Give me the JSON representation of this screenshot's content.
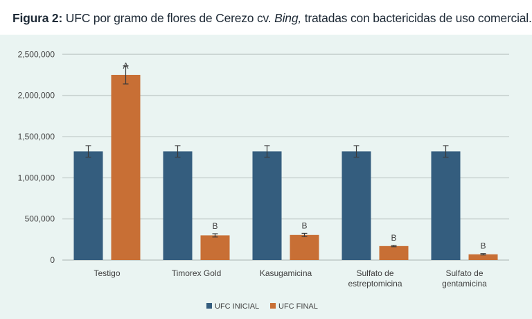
{
  "chart_data": {
    "type": "bar",
    "title": {
      "prefix": "Figura 2:",
      "text_before": " UFC por gramo de flores de Cerezo cv. ",
      "italic": "Bing,",
      "text_after": " tratadas con bactericidas de uso comercial."
    },
    "xlabel": "",
    "ylabel": "",
    "ylim": [
      0,
      2500000
    ],
    "yticks": [
      0,
      500000,
      1000000,
      1500000,
      2000000,
      2500000
    ],
    "ytick_labels": [
      "0",
      "500,000",
      "1,000,000",
      "1,500,000",
      "2,000,000",
      "2,500,000"
    ],
    "grid": true,
    "categories": [
      [
        "Testigo"
      ],
      [
        "Timorex Gold"
      ],
      [
        "Kasugamicina"
      ],
      [
        "Sulfato de",
        "estreptomicina"
      ],
      [
        "Sulfato de",
        "gentamicina"
      ]
    ],
    "series": [
      {
        "name": "UFC INICIAL",
        "color": "#345d7e",
        "values": [
          1320000,
          1320000,
          1320000,
          1320000,
          1320000
        ],
        "errors": [
          70000,
          70000,
          70000,
          70000,
          70000
        ],
        "labels": [
          "",
          "",
          "",
          "",
          ""
        ]
      },
      {
        "name": "UFC FINAL",
        "color": "#c86f35",
        "values": [
          2250000,
          300000,
          305000,
          170000,
          70000
        ],
        "errors": [
          110000,
          20000,
          20000,
          8000,
          8000
        ],
        "labels": [
          "A",
          "B",
          "B",
          "B",
          "B"
        ]
      }
    ],
    "legend_position": "bottom"
  }
}
